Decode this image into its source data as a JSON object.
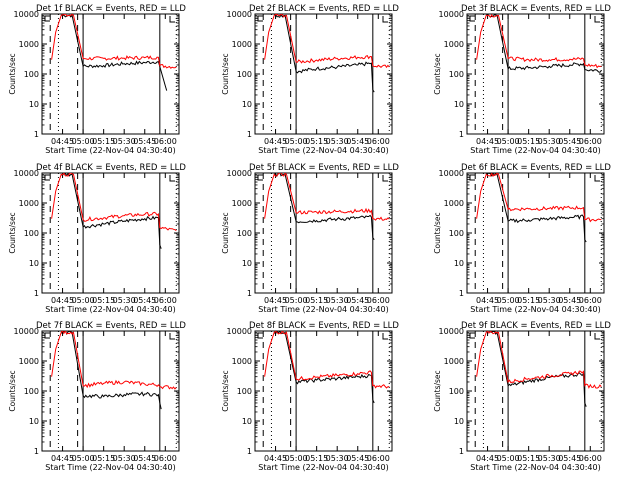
{
  "figure": {
    "background": "#ffffff",
    "event_color": "#000000",
    "lld_color": "#ff0000",
    "xlabel": "Start Time (22-Nov-04 04:30:40)",
    "ylabel": "Counts/sec",
    "ytick_labels": [
      "1",
      "10",
      "100",
      "1000",
      "10000"
    ],
    "xtick_labels": [
      "04:45",
      "05:00",
      "05:15",
      "05:30",
      "05:45",
      "06:00"
    ]
  },
  "chart_data": [
    {
      "type": "line",
      "title": "Det 1f BLACK = Events, RED = LLD",
      "xlabel": "Start Time (22-Nov-04 04:30:40)",
      "ylabel": "Counts/sec",
      "yscale": "log",
      "ylim": [
        1,
        10000
      ],
      "xlim": [
        "04:30",
        "06:10"
      ],
      "series": [
        {
          "name": "Events",
          "points": [
            [
              "04:44",
              9000
            ],
            [
              "04:52",
              9000
            ],
            [
              "05:00",
              180
            ],
            [
              "05:15",
              190
            ],
            [
              "05:30",
              220
            ],
            [
              "05:45",
              240
            ],
            [
              "05:55",
              260
            ],
            [
              "06:00",
              40
            ],
            [
              "06:01",
              28
            ]
          ]
        },
        {
          "name": "LLD",
          "points": [
            [
              "04:37",
              300
            ],
            [
              "04:40",
              2500
            ],
            [
              "04:44",
              9000
            ],
            [
              "04:53",
              9000
            ],
            [
              "05:00",
              330
            ],
            [
              "05:15",
              330
            ],
            [
              "05:30",
              340
            ],
            [
              "05:45",
              350
            ],
            [
              "05:55",
              360
            ],
            [
              "05:56",
              190
            ],
            [
              "06:08",
              170
            ]
          ]
        }
      ]
    },
    {
      "type": "line",
      "title": "Det 2f BLACK = Events, RED = LLD",
      "xlabel": "Start Time (22-Nov-04 04:30:40)",
      "ylabel": "Counts/sec",
      "yscale": "log",
      "ylim": [
        1,
        10000
      ],
      "xlim": [
        "04:30",
        "06:10"
      ],
      "series": [
        {
          "name": "Events",
          "points": [
            [
              "04:44",
              9000
            ],
            [
              "04:52",
              9000
            ],
            [
              "05:00",
              120
            ],
            [
              "05:15",
              150
            ],
            [
              "05:30",
              170
            ],
            [
              "05:45",
              200
            ],
            [
              "05:55",
              230
            ],
            [
              "05:56",
              30
            ],
            [
              "05:57",
              25
            ]
          ]
        },
        {
          "name": "LLD",
          "points": [
            [
              "04:37",
              300
            ],
            [
              "04:40",
              2500
            ],
            [
              "04:44",
              9000
            ],
            [
              "04:53",
              9000
            ],
            [
              "05:00",
              250
            ],
            [
              "05:15",
              290
            ],
            [
              "05:30",
              330
            ],
            [
              "05:45",
              360
            ],
            [
              "05:55",
              380
            ],
            [
              "05:56",
              190
            ],
            [
              "06:08",
              170
            ]
          ]
        }
      ]
    },
    {
      "type": "line",
      "title": "Det 3f BLACK = Events, RED = LLD",
      "xlabel": "Start Time (22-Nov-04 04:30:40)",
      "ylabel": "Counts/sec",
      "yscale": "log",
      "ylim": [
        1,
        10000
      ],
      "xlim": [
        "04:30",
        "06:10"
      ],
      "series": [
        {
          "name": "Events",
          "points": [
            [
              "04:44",
              9000
            ],
            [
              "04:52",
              9000
            ],
            [
              "05:00",
              150
            ],
            [
              "05:15",
              160
            ],
            [
              "05:30",
              180
            ],
            [
              "05:45",
              200
            ],
            [
              "05:55",
              220
            ],
            [
              "05:56",
              140
            ],
            [
              "06:08",
              130
            ]
          ]
        },
        {
          "name": "LLD",
          "points": [
            [
              "04:37",
              300
            ],
            [
              "04:40",
              2500
            ],
            [
              "04:44",
              9000
            ],
            [
              "04:53",
              9000
            ],
            [
              "05:00",
              330
            ],
            [
              "05:15",
              300
            ],
            [
              "05:30",
              300
            ],
            [
              "05:45",
              310
            ],
            [
              "05:55",
              320
            ],
            [
              "05:56",
              200
            ],
            [
              "06:08",
              180
            ]
          ]
        }
      ]
    },
    {
      "type": "line",
      "title": "Det 4f BLACK = Events, RED = LLD",
      "xlabel": "Start Time (22-Nov-04 04:30:40)",
      "ylabel": "Counts/sec",
      "yscale": "log",
      "ylim": [
        1,
        10000
      ],
      "xlim": [
        "04:30",
        "06:10"
      ],
      "series": [
        {
          "name": "Events",
          "points": [
            [
              "04:44",
              9000
            ],
            [
              "04:52",
              9000
            ],
            [
              "05:00",
              160
            ],
            [
              "05:15",
              200
            ],
            [
              "05:30",
              250
            ],
            [
              "05:45",
              300
            ],
            [
              "05:55",
              320
            ],
            [
              "05:56",
              40
            ],
            [
              "05:57",
              30
            ]
          ]
        },
        {
          "name": "LLD",
          "points": [
            [
              "04:37",
              300
            ],
            [
              "04:40",
              2500
            ],
            [
              "04:44",
              9000
            ],
            [
              "04:53",
              9000
            ],
            [
              "05:00",
              280
            ],
            [
              "05:15",
              320
            ],
            [
              "05:30",
              380
            ],
            [
              "05:45",
              420
            ],
            [
              "05:55",
              430
            ],
            [
              "05:56",
              150
            ],
            [
              "06:08",
              120
            ]
          ]
        }
      ]
    },
    {
      "type": "line",
      "title": "Det 5f BLACK = Events, RED = LLD",
      "xlabel": "Start Time (22-Nov-04 04:30:40)",
      "ylabel": "Counts/sec",
      "yscale": "log",
      "ylim": [
        1,
        10000
      ],
      "xlim": [
        "04:30",
        "06:10"
      ],
      "series": [
        {
          "name": "Events",
          "points": [
            [
              "04:44",
              9000
            ],
            [
              "04:52",
              9000
            ],
            [
              "05:00",
              240
            ],
            [
              "05:15",
              260
            ],
            [
              "05:30",
              290
            ],
            [
              "05:45",
              320
            ],
            [
              "05:55",
              340
            ],
            [
              "05:56",
              70
            ],
            [
              "05:57",
              60
            ]
          ]
        },
        {
          "name": "LLD",
          "points": [
            [
              "04:37",
              300
            ],
            [
              "04:40",
              2500
            ],
            [
              "04:44",
              9000
            ],
            [
              "04:53",
              9000
            ],
            [
              "05:00",
              480
            ],
            [
              "05:15",
              500
            ],
            [
              "05:30",
              520
            ],
            [
              "05:45",
              540
            ],
            [
              "05:55",
              560
            ],
            [
              "05:56",
              300
            ],
            [
              "06:08",
              290
            ]
          ]
        }
      ]
    },
    {
      "type": "line",
      "title": "Det 6f BLACK = Events, RED = LLD",
      "xlabel": "Start Time (22-Nov-04 04:30:40)",
      "ylabel": "Counts/sec",
      "yscale": "log",
      "ylim": [
        1,
        10000
      ],
      "xlim": [
        "04:30",
        "06:10"
      ],
      "series": [
        {
          "name": "Events",
          "points": [
            [
              "04:44",
              9000
            ],
            [
              "04:52",
              9000
            ],
            [
              "05:00",
              250
            ],
            [
              "05:15",
              270
            ],
            [
              "05:30",
              300
            ],
            [
              "05:45",
              330
            ],
            [
              "05:55",
              350
            ],
            [
              "05:56",
              60
            ],
            [
              "05:57",
              50
            ]
          ]
        },
        {
          "name": "LLD",
          "points": [
            [
              "04:37",
              300
            ],
            [
              "04:40",
              2500
            ],
            [
              "04:44",
              9000
            ],
            [
              "04:53",
              9000
            ],
            [
              "05:00",
              620
            ],
            [
              "05:15",
              640
            ],
            [
              "05:30",
              660
            ],
            [
              "05:45",
              690
            ],
            [
              "05:55",
              700
            ],
            [
              "05:56",
              280
            ],
            [
              "06:08",
              280
            ]
          ]
        }
      ]
    },
    {
      "type": "line",
      "title": "Det 7f BLACK = Events, RED = LLD",
      "xlabel": "Start Time (22-Nov-04 04:30:40)",
      "ylabel": "Counts/sec",
      "yscale": "log",
      "ylim": [
        1,
        10000
      ],
      "xlim": [
        "04:30",
        "06:10"
      ],
      "series": [
        {
          "name": "Events",
          "points": [
            [
              "04:44",
              9000
            ],
            [
              "04:52",
              9000
            ],
            [
              "05:00",
              70
            ],
            [
              "05:15",
              65
            ],
            [
              "05:30",
              75
            ],
            [
              "05:45",
              80
            ],
            [
              "05:55",
              75
            ],
            [
              "05:56",
              40
            ],
            [
              "05:57",
              25
            ]
          ]
        },
        {
          "name": "LLD",
          "points": [
            [
              "04:37",
              300
            ],
            [
              "04:40",
              2500
            ],
            [
              "04:44",
              9000
            ],
            [
              "04:53",
              9000
            ],
            [
              "05:00",
              150
            ],
            [
              "05:15",
              180
            ],
            [
              "05:30",
              200
            ],
            [
              "05:45",
              170
            ],
            [
              "05:55",
              160
            ],
            [
              "05:56",
              140
            ],
            [
              "06:08",
              130
            ]
          ]
        }
      ]
    },
    {
      "type": "line",
      "title": "Det 8f BLACK = Events, RED = LLD",
      "xlabel": "Start Time (22-Nov-04 04:30:40)",
      "ylabel": "Counts/sec",
      "yscale": "log",
      "ylim": [
        1,
        10000
      ],
      "xlim": [
        "04:30",
        "06:10"
      ],
      "series": [
        {
          "name": "Events",
          "points": [
            [
              "04:44",
              9000
            ],
            [
              "04:52",
              9000
            ],
            [
              "05:00",
              200
            ],
            [
              "05:15",
              230
            ],
            [
              "05:30",
              260
            ],
            [
              "05:45",
              300
            ],
            [
              "05:55",
              330
            ],
            [
              "05:56",
              50
            ],
            [
              "05:57",
              40
            ]
          ]
        },
        {
          "name": "LLD",
          "points": [
            [
              "04:37",
              300
            ],
            [
              "04:40",
              2500
            ],
            [
              "04:44",
              9000
            ],
            [
              "04:53",
              9000
            ],
            [
              "05:00",
              250
            ],
            [
              "05:15",
              290
            ],
            [
              "05:30",
              330
            ],
            [
              "05:45",
              380
            ],
            [
              "05:55",
              420
            ],
            [
              "05:56",
              150
            ],
            [
              "06:08",
              140
            ]
          ]
        }
      ]
    },
    {
      "type": "line",
      "title": "Det 9f BLACK = Events, RED = LLD",
      "xlabel": "Start Time (22-Nov-04 04:30:40)",
      "ylabel": "Counts/sec",
      "yscale": "log",
      "ylim": [
        1,
        10000
      ],
      "xlim": [
        "04:30",
        "06:10"
      ],
      "series": [
        {
          "name": "Events",
          "points": [
            [
              "04:44",
              9000
            ],
            [
              "04:52",
              9000
            ],
            [
              "05:00",
              150
            ],
            [
              "05:15",
              210
            ],
            [
              "05:30",
              280
            ],
            [
              "05:45",
              330
            ],
            [
              "05:55",
              380
            ],
            [
              "05:56",
              40
            ],
            [
              "05:57",
              30
            ]
          ]
        },
        {
          "name": "LLD",
          "points": [
            [
              "04:37",
              300
            ],
            [
              "04:40",
              2500
            ],
            [
              "04:44",
              9000
            ],
            [
              "04:53",
              9000
            ],
            [
              "05:00",
              200
            ],
            [
              "05:15",
              260
            ],
            [
              "05:30",
              320
            ],
            [
              "05:45",
              380
            ],
            [
              "05:55",
              450
            ],
            [
              "05:56",
              150
            ],
            [
              "06:08",
              140
            ]
          ]
        }
      ]
    }
  ]
}
